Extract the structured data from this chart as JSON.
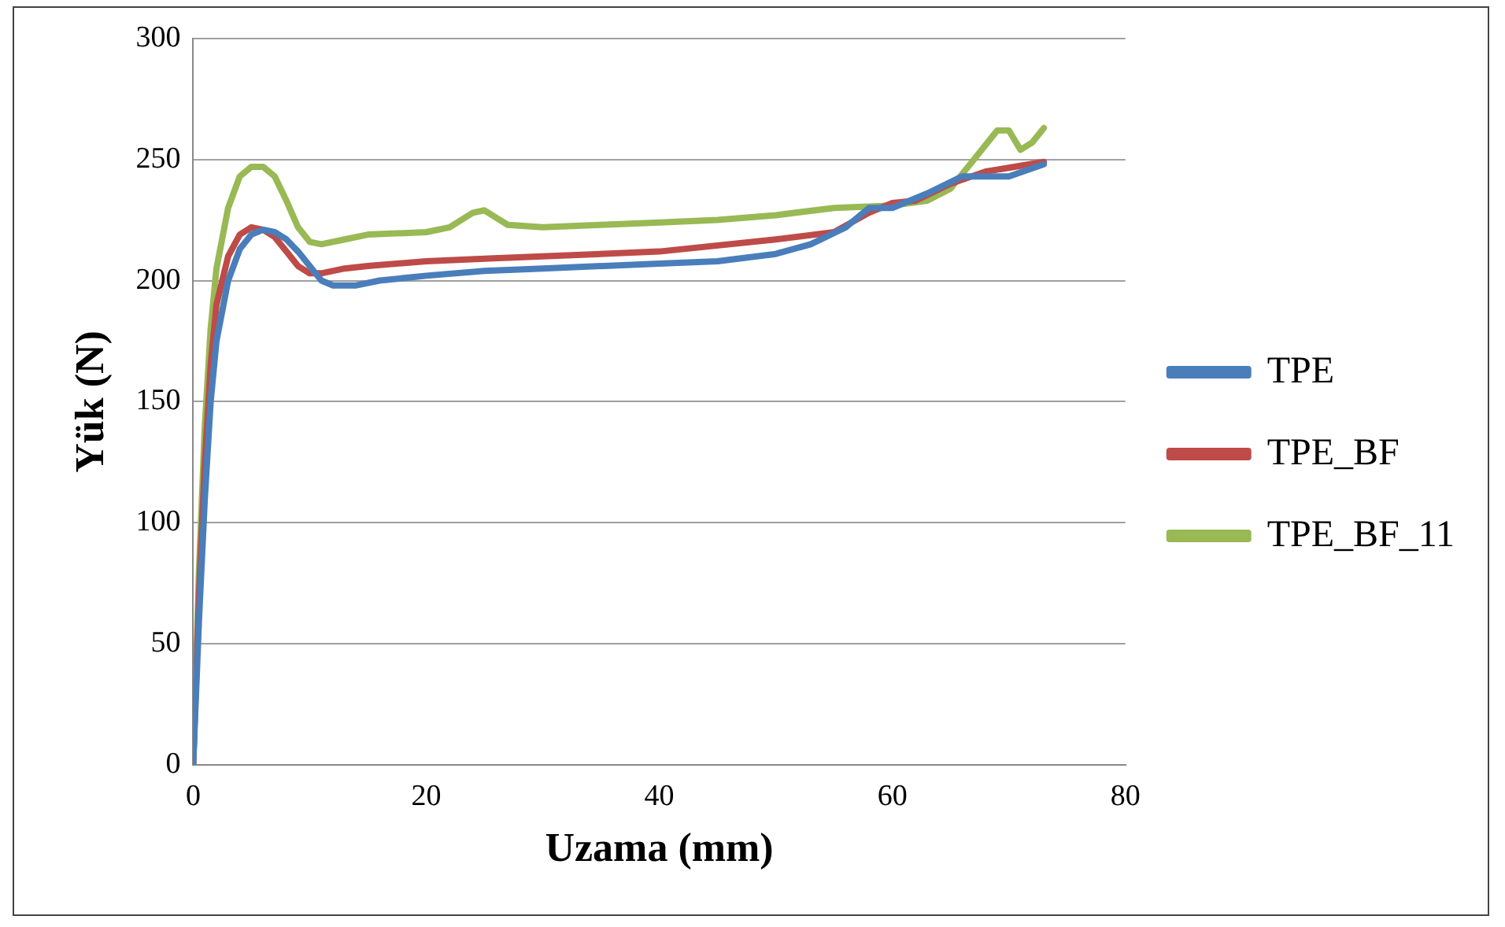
{
  "chart_data": {
    "type": "line",
    "xlabel": "Uzama (mm)",
    "ylabel": "Yük (N)",
    "xlim": [
      0,
      80
    ],
    "xticks": [
      0,
      20,
      40,
      60,
      80
    ],
    "ylim": [
      0,
      300
    ],
    "yticks": [
      0,
      50,
      100,
      150,
      200,
      250,
      300
    ],
    "grid": "y",
    "legend": "right",
    "marker": "none",
    "line_style": "solid",
    "series": [
      {
        "name": "TPE",
        "color": "#4a7ebb",
        "x": [
          0,
          0.5,
          1,
          1.5,
          2,
          3,
          4,
          5,
          6,
          7,
          8,
          9,
          10,
          11,
          12,
          14,
          16,
          20,
          25,
          30,
          40,
          45,
          50,
          53,
          56,
          58,
          60,
          63,
          66,
          70,
          73
        ],
        "values": [
          0,
          60,
          110,
          150,
          175,
          200,
          213,
          219,
          221,
          220,
          217,
          212,
          206,
          200,
          198,
          198,
          200,
          202,
          204,
          205,
          207,
          208,
          211,
          215,
          222,
          230,
          230,
          236,
          243,
          243,
          248
        ]
      },
      {
        "name": "TPE_BF",
        "color": "#be4b48",
        "x": [
          0,
          0.5,
          1,
          1.5,
          2,
          3,
          4,
          5,
          6,
          7,
          8,
          9,
          10,
          11,
          13,
          15,
          20,
          25,
          30,
          40,
          50,
          55,
          58,
          60,
          62,
          65,
          68,
          73
        ],
        "values": [
          0,
          70,
          125,
          165,
          190,
          210,
          219,
          222,
          221,
          218,
          212,
          206,
          203,
          203,
          205,
          206,
          208,
          209,
          210,
          212,
          217,
          220,
          228,
          232,
          233,
          240,
          245,
          249
        ]
      },
      {
        "name": "TPE_BF_11",
        "color": "#98b954",
        "x": [
          0,
          0.5,
          1,
          1.5,
          2,
          3,
          4,
          5,
          6,
          7,
          8,
          9,
          10,
          11,
          13,
          15,
          20,
          22,
          24,
          25,
          26,
          27,
          30,
          35,
          40,
          45,
          50,
          55,
          60,
          63,
          65,
          67,
          69,
          70,
          71,
          72,
          73
        ],
        "values": [
          0,
          80,
          140,
          180,
          205,
          230,
          243,
          247,
          247,
          243,
          233,
          222,
          216,
          215,
          217,
          219,
          220,
          222,
          228,
          229,
          226,
          223,
          222,
          223,
          224,
          225,
          227,
          230,
          231,
          233,
          238,
          250,
          262,
          262,
          254,
          257,
          263
        ]
      }
    ]
  }
}
